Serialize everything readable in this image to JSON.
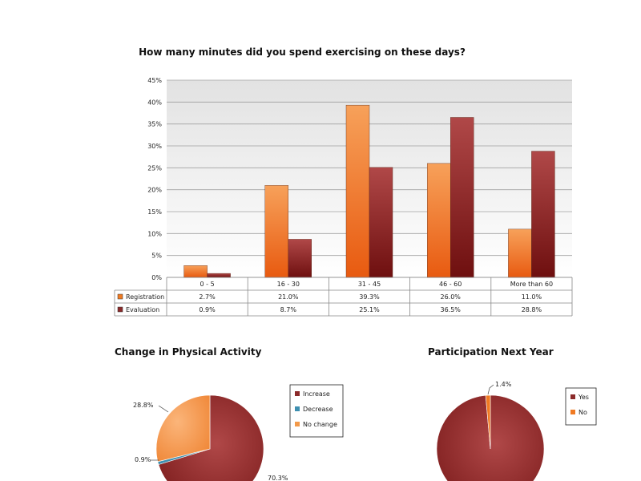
{
  "chart_data": [
    {
      "type": "bar",
      "title": "How many minutes did you spend exercising on these days?",
      "categories": [
        "0 - 5",
        "16 - 30",
        "31 - 45",
        "46 - 60",
        "More than 60"
      ],
      "series": [
        {
          "name": "Registration",
          "values": [
            2.7,
            21.0,
            39.3,
            26.0,
            11.0
          ],
          "labels": [
            "2.7%",
            "21.0%",
            "39.3%",
            "26.0%",
            "11.0%"
          ],
          "color": "#f07a22"
        },
        {
          "name": "Evaluation",
          "values": [
            0.9,
            8.7,
            25.1,
            36.5,
            28.8
          ],
          "labels": [
            "0.9%",
            "8.7%",
            "25.1%",
            "36.5%",
            "28.8%"
          ],
          "color": "#8b2a2a"
        }
      ],
      "ylim": [
        0,
        45
      ],
      "yticks": [
        "0%",
        "5%",
        "10%",
        "15%",
        "20%",
        "25%",
        "30%",
        "35%",
        "40%",
        "45%"
      ],
      "grid": true,
      "data_table": true
    },
    {
      "type": "pie",
      "title": "Change in Physical Activity",
      "slices": [
        {
          "name": "Increase",
          "value": 70.3,
          "label": "70.3%",
          "color": "#8b2a2a"
        },
        {
          "name": "Decrease",
          "value": 0.9,
          "label": "0.9%",
          "color": "#3e8fb0"
        },
        {
          "name": "No change",
          "value": 28.8,
          "label": "28.8%",
          "color": "#f39a4a"
        }
      ],
      "legend": "right"
    },
    {
      "type": "pie",
      "title": "Participation Next Year",
      "slices": [
        {
          "name": "Yes",
          "value": 98.6,
          "label": "",
          "color": "#8b2a2a"
        },
        {
          "name": "No",
          "value": 1.4,
          "label": "1.4%",
          "color": "#f07a22"
        }
      ],
      "legend": "right"
    }
  ]
}
